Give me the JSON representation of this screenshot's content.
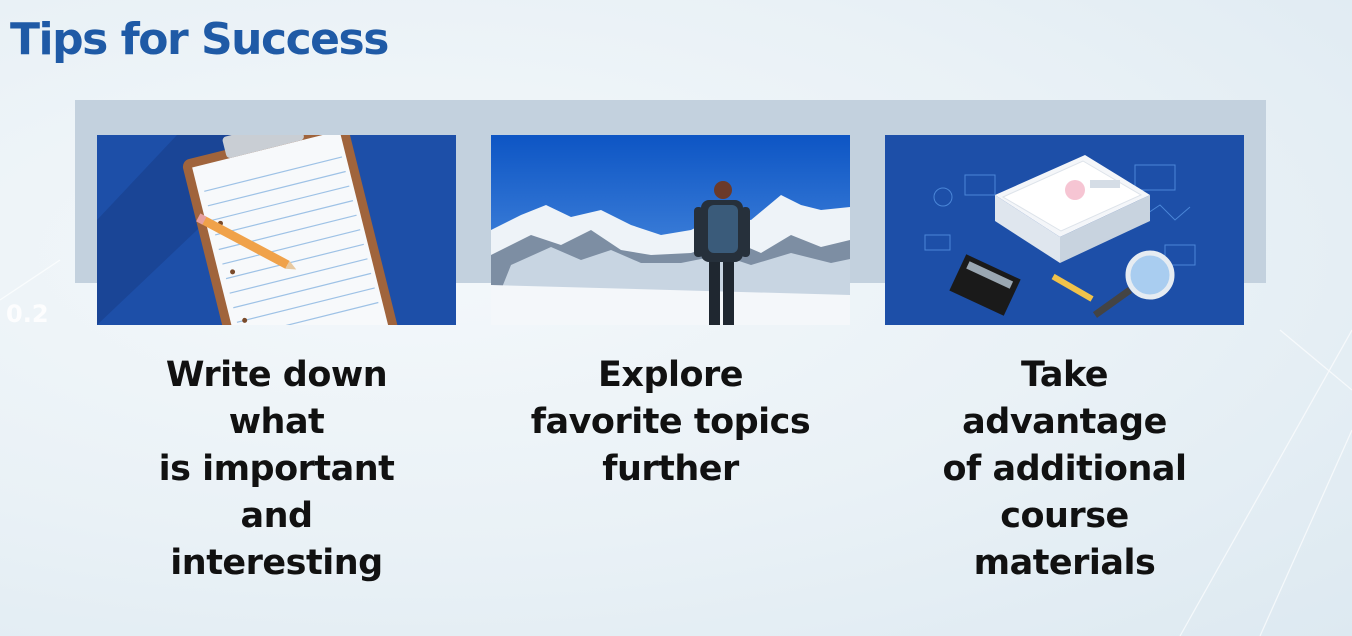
{
  "slide": {
    "title": "Tips for Success",
    "side_number": "0.2"
  },
  "tips": [
    {
      "image_icon": "clipboard-pencil-icon",
      "lines": [
        "Write down",
        "what",
        "is important",
        "and",
        "interesting"
      ]
    },
    {
      "image_icon": "mountain-hiker-photo",
      "lines": [
        "Explore",
        "favorite topics",
        "further"
      ]
    },
    {
      "image_icon": "documents-calculator-magnifier-icon",
      "lines": [
        "Take",
        "advantage",
        "of additional",
        "course",
        "materials"
      ]
    }
  ],
  "colors": {
    "title": "#1f5aa6",
    "band": "#c3d1de",
    "panel_blue": "#1d4fa8",
    "sky": "#1f6fd1",
    "caption": "#111111"
  }
}
